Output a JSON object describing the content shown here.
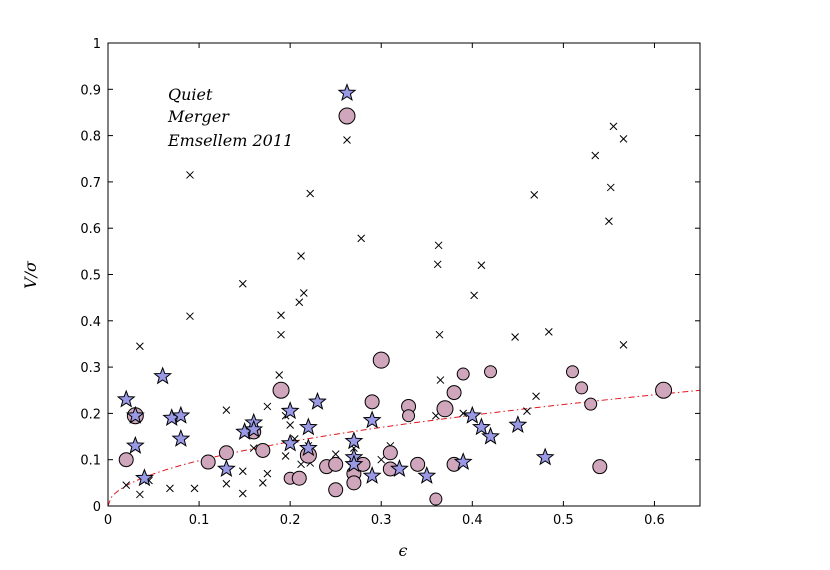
{
  "chart_data": {
    "type": "scatter",
    "title": "",
    "xlabel": "ϵ",
    "ylabel": "V/σ",
    "xlim": [
      0,
      0.65
    ],
    "ylim": [
      0,
      1
    ],
    "x_ticks": [
      "0",
      "0.1",
      "0.2",
      "0.3",
      "0.4",
      "0.5",
      "0.6"
    ],
    "y_ticks": [
      "0",
      "0.1",
      "0.2",
      "0.3",
      "0.4",
      "0.5",
      "0.6",
      "0.7",
      "0.8",
      "0.9",
      "1"
    ],
    "grid": false,
    "legend_placement": "top-left",
    "colors": {
      "quiet": "#9999e6",
      "merger": "#cfa6bb",
      "emsellem": "#000000",
      "curve": "#e0141e"
    },
    "series": [
      {
        "name": "Quiet",
        "marker": "star",
        "points": [
          [
            0.02,
            0.23
          ],
          [
            0.03,
            0.195
          ],
          [
            0.03,
            0.13
          ],
          [
            0.04,
            0.06
          ],
          [
            0.06,
            0.28
          ],
          [
            0.07,
            0.19
          ],
          [
            0.08,
            0.195
          ],
          [
            0.08,
            0.145
          ],
          [
            0.13,
            0.08
          ],
          [
            0.15,
            0.16
          ],
          [
            0.16,
            0.18
          ],
          [
            0.16,
            0.165
          ],
          [
            0.2,
            0.205
          ],
          [
            0.2,
            0.135
          ],
          [
            0.22,
            0.17
          ],
          [
            0.22,
            0.125
          ],
          [
            0.23,
            0.225
          ],
          [
            0.27,
            0.14
          ],
          [
            0.27,
            0.105
          ],
          [
            0.27,
            0.09
          ],
          [
            0.29,
            0.185
          ],
          [
            0.29,
            0.065
          ],
          [
            0.32,
            0.08
          ],
          [
            0.35,
            0.065
          ],
          [
            0.39,
            0.095
          ],
          [
            0.4,
            0.195
          ],
          [
            0.41,
            0.17
          ],
          [
            0.42,
            0.15
          ],
          [
            0.45,
            0.175
          ],
          [
            0.48,
            0.105
          ]
        ]
      },
      {
        "name": "Merger",
        "marker": "circle",
        "points": [
          [
            0.02,
            0.1,
            7
          ],
          [
            0.03,
            0.195,
            8
          ],
          [
            0.11,
            0.095,
            7
          ],
          [
            0.13,
            0.115,
            7
          ],
          [
            0.16,
            0.16,
            7
          ],
          [
            0.17,
            0.12,
            7
          ],
          [
            0.19,
            0.25,
            8
          ],
          [
            0.2,
            0.06,
            6
          ],
          [
            0.21,
            0.06,
            7
          ],
          [
            0.22,
            0.11,
            8
          ],
          [
            0.24,
            0.085,
            7
          ],
          [
            0.25,
            0.09,
            7
          ],
          [
            0.25,
            0.035,
            7
          ],
          [
            0.27,
            0.07,
            7
          ],
          [
            0.27,
            0.05,
            7
          ],
          [
            0.28,
            0.09,
            7
          ],
          [
            0.29,
            0.225,
            7
          ],
          [
            0.3,
            0.315,
            8
          ],
          [
            0.31,
            0.115,
            7
          ],
          [
            0.31,
            0.08,
            7
          ],
          [
            0.33,
            0.215,
            7
          ],
          [
            0.33,
            0.195,
            6
          ],
          [
            0.34,
            0.09,
            7
          ],
          [
            0.36,
            0.015,
            6
          ],
          [
            0.37,
            0.21,
            8
          ],
          [
            0.38,
            0.245,
            7
          ],
          [
            0.38,
            0.09,
            7
          ],
          [
            0.39,
            0.285,
            6
          ],
          [
            0.42,
            0.29,
            6
          ],
          [
            0.51,
            0.29,
            6
          ],
          [
            0.52,
            0.255,
            6
          ],
          [
            0.53,
            0.22,
            6
          ],
          [
            0.54,
            0.085,
            7
          ],
          [
            0.61,
            0.25,
            8
          ]
        ]
      },
      {
        "name": "Emsellem 2011",
        "marker": "x",
        "points": [
          [
            0.035,
            0.345
          ],
          [
            0.09,
            0.715
          ],
          [
            0.09,
            0.41
          ],
          [
            0.148,
            0.48
          ],
          [
            0.19,
            0.412
          ],
          [
            0.19,
            0.37
          ],
          [
            0.212,
            0.54
          ],
          [
            0.21,
            0.44
          ],
          [
            0.215,
            0.46
          ],
          [
            0.222,
            0.675
          ],
          [
            0.278,
            0.578
          ],
          [
            0.363,
            0.563
          ],
          [
            0.362,
            0.522
          ],
          [
            0.364,
            0.37
          ],
          [
            0.365,
            0.272
          ],
          [
            0.41,
            0.52
          ],
          [
            0.402,
            0.455
          ],
          [
            0.468,
            0.672
          ],
          [
            0.447,
            0.365
          ],
          [
            0.484,
            0.376
          ],
          [
            0.535,
            0.757
          ],
          [
            0.555,
            0.82
          ],
          [
            0.552,
            0.688
          ],
          [
            0.55,
            0.615
          ],
          [
            0.566,
            0.793
          ],
          [
            0.566,
            0.348
          ],
          [
            0.47,
            0.237
          ],
          [
            0.46,
            0.205
          ],
          [
            0.02,
            0.045
          ],
          [
            0.035,
            0.025
          ],
          [
            0.045,
            0.055
          ],
          [
            0.068,
            0.038
          ],
          [
            0.095,
            0.038
          ],
          [
            0.13,
            0.207
          ],
          [
            0.13,
            0.048
          ],
          [
            0.148,
            0.075
          ],
          [
            0.148,
            0.027
          ],
          [
            0.16,
            0.125
          ],
          [
            0.17,
            0.05
          ],
          [
            0.175,
            0.07
          ],
          [
            0.175,
            0.215
          ],
          [
            0.188,
            0.283
          ],
          [
            0.195,
            0.195
          ],
          [
            0.195,
            0.108
          ],
          [
            0.2,
            0.175
          ],
          [
            0.205,
            0.145
          ],
          [
            0.212,
            0.09
          ],
          [
            0.22,
            0.13
          ],
          [
            0.222,
            0.093
          ],
          [
            0.25,
            0.112
          ],
          [
            0.27,
            0.125
          ],
          [
            0.3,
            0.1
          ],
          [
            0.31,
            0.13
          ],
          [
            0.36,
            0.195
          ],
          [
            0.39,
            0.2
          ]
        ]
      }
    ],
    "curve": {
      "style": "dash-dot",
      "formula": "0.31*sqrt(x)",
      "x": [
        0,
        0.65
      ]
    },
    "legend": [
      {
        "label": "Quiet",
        "marker": "star"
      },
      {
        "label": "Merger",
        "marker": "circle"
      },
      {
        "label": "Emsellem 2011",
        "marker": "x"
      }
    ]
  }
}
